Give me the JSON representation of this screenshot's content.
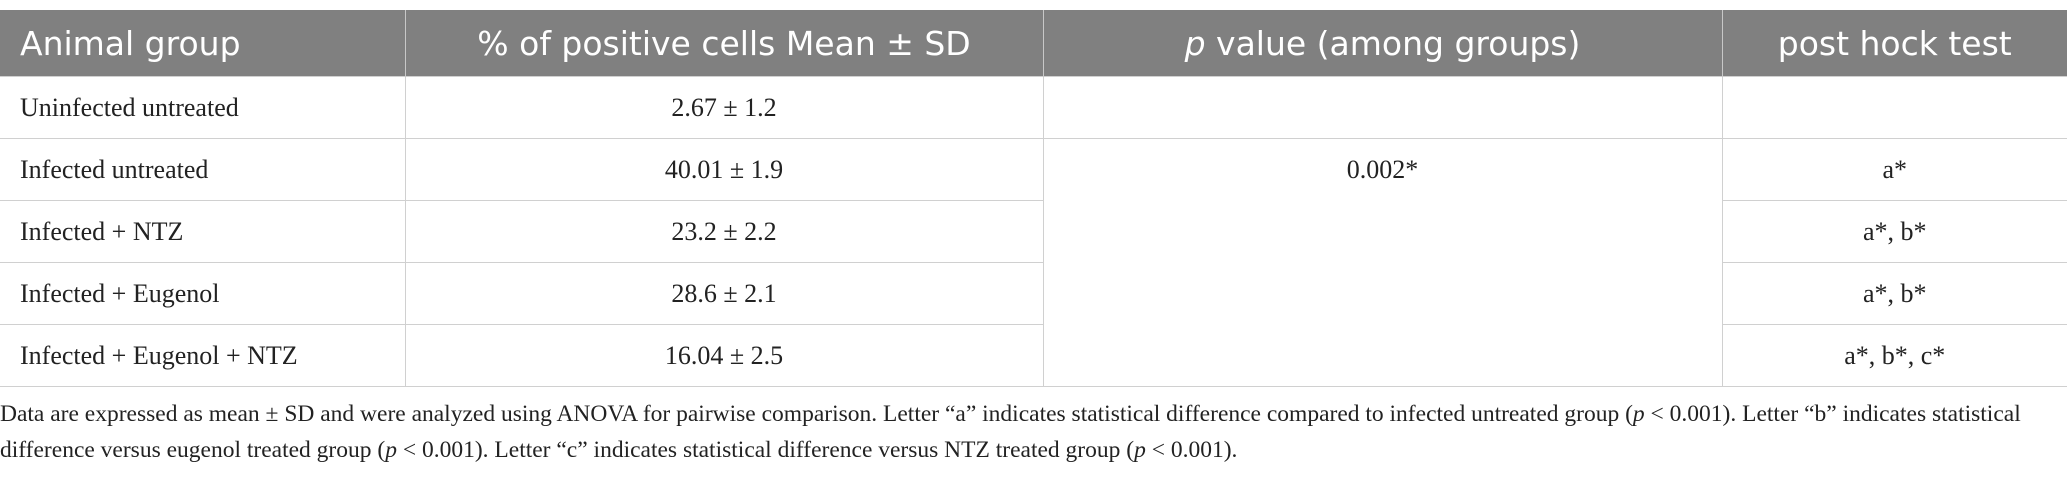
{
  "table": {
    "header": {
      "group": "Animal group",
      "percent": "% of positive cells Mean ± SD",
      "p_italic": "p",
      "p_rest": " value (among groups)",
      "post_hoc": "post hock test"
    },
    "p_value": "0.002*",
    "rows": [
      {
        "group": "Uninfected untreated",
        "percent": "2.67 ± 1.2"
      },
      {
        "group": "Infected untreated",
        "percent": "40.01 ± 1.9",
        "post_hoc": "a*"
      },
      {
        "group": "Infected + NTZ",
        "percent": "23.2 ± 2.2",
        "post_hoc": "a*, b*"
      },
      {
        "group": "Infected + Eugenol",
        "percent": "28.6 ± 2.1",
        "post_hoc": "a*, b*"
      },
      {
        "group": "Infected + Eugenol + NTZ",
        "percent": "16.04 ± 2.5",
        "post_hoc": "a*, b*, c*"
      }
    ]
  },
  "footnote": [
    "Data are expressed as mean ± SD and were analyzed using ANOVA for pairwise comparison. Letter “a” indicates statistical difference compared to infected untreated group (",
    "p",
    " < 0.001). Letter “b” indicates statistical difference versus eugenol treated group (",
    "p",
    " < 0.001). Letter “c” indicates statistical difference versus NTZ treated group (",
    "p",
    " < 0.001)."
  ]
}
